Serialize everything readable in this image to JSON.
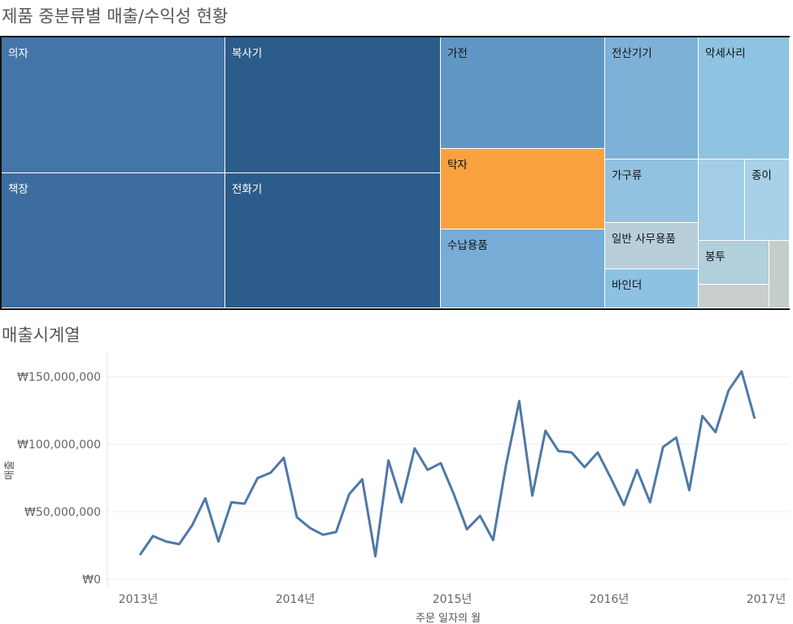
{
  "treemap": {
    "title": "제품 중분류별 매출/수익성 현황",
    "tiles": [
      {
        "label": "의자",
        "color": "#4375a8"
      },
      {
        "label": "복사기",
        "color": "#2c5c8a"
      },
      {
        "label": "책장",
        "color": "#3d6d9e"
      },
      {
        "label": "전화기",
        "color": "#2c5c8a"
      },
      {
        "label": "가전",
        "color": "#6096c4"
      },
      {
        "label": "탁자",
        "color": "#f9a13f"
      },
      {
        "label": "수납용품",
        "color": "#76acd5"
      },
      {
        "label": "전산기기",
        "color": "#7eb1d8"
      },
      {
        "label": "악세사리",
        "color": "#8ec3e1"
      },
      {
        "label": "가구류",
        "color": "#92c2e0"
      },
      {
        "label": "일반 사무용품",
        "color": "#b8cfda"
      },
      {
        "label": "바인더",
        "color": "#8dc2e2"
      },
      {
        "label": "",
        "color": "#a3cde6"
      },
      {
        "label": "종이",
        "color": "#a8d0e6"
      },
      {
        "label": "봉투",
        "color": "#b2cfdc"
      },
      {
        "label": "",
        "color": "#c8cfcb"
      },
      {
        "label": "",
        "color": "#c3cdca"
      }
    ]
  },
  "timeseries": {
    "title": "매출시계열"
  },
  "chart_data": {
    "type": "line",
    "title": "매출시계열",
    "xlabel": "주문 일자의 월",
    "ylabel": "매출",
    "x_ticks": [
      "2013년",
      "2014년",
      "2015년",
      "2016년",
      "2017년"
    ],
    "y_ticks": [
      "₩0",
      "₩50,000,000",
      "₩100,000,000",
      "₩150,000,000"
    ],
    "ylim": [
      0,
      170000000
    ],
    "x_start": "2013-01",
    "x_end": "2017-01",
    "series": [
      {
        "color": "#4e79a7",
        "x": [
          "2013-01",
          "2013-02",
          "2013-03",
          "2013-04",
          "2013-05",
          "2013-06",
          "2013-07",
          "2013-08",
          "2013-09",
          "2013-10",
          "2013-11",
          "2013-12",
          "2014-01",
          "2014-02",
          "2014-03",
          "2014-04",
          "2014-05",
          "2014-06",
          "2014-07",
          "2014-08",
          "2014-09",
          "2014-10",
          "2014-11",
          "2014-12",
          "2015-01",
          "2015-02",
          "2015-03",
          "2015-04",
          "2015-05",
          "2015-06",
          "2015-07",
          "2015-08",
          "2015-09",
          "2015-10",
          "2015-11",
          "2015-12",
          "2016-01",
          "2016-02",
          "2016-03",
          "2016-04",
          "2016-05",
          "2016-06",
          "2016-07",
          "2016-08",
          "2016-09",
          "2016-10",
          "2016-11",
          "2016-12"
        ],
        "values": [
          18000000,
          32000000,
          28000000,
          26000000,
          40000000,
          60000000,
          28000000,
          57000000,
          56000000,
          75000000,
          79000000,
          90000000,
          46000000,
          38000000,
          33000000,
          35000000,
          63000000,
          74000000,
          17000000,
          88000000,
          57000000,
          97000000,
          81000000,
          86000000,
          63000000,
          37000000,
          47000000,
          29000000,
          85000000,
          132000000,
          62000000,
          110000000,
          95000000,
          94000000,
          83000000,
          94000000,
          75000000,
          55000000,
          81000000,
          57000000,
          98000000,
          105000000,
          66000000,
          121000000,
          109000000,
          140000000,
          154000000,
          119000000
        ]
      }
    ],
    "grid": true
  }
}
